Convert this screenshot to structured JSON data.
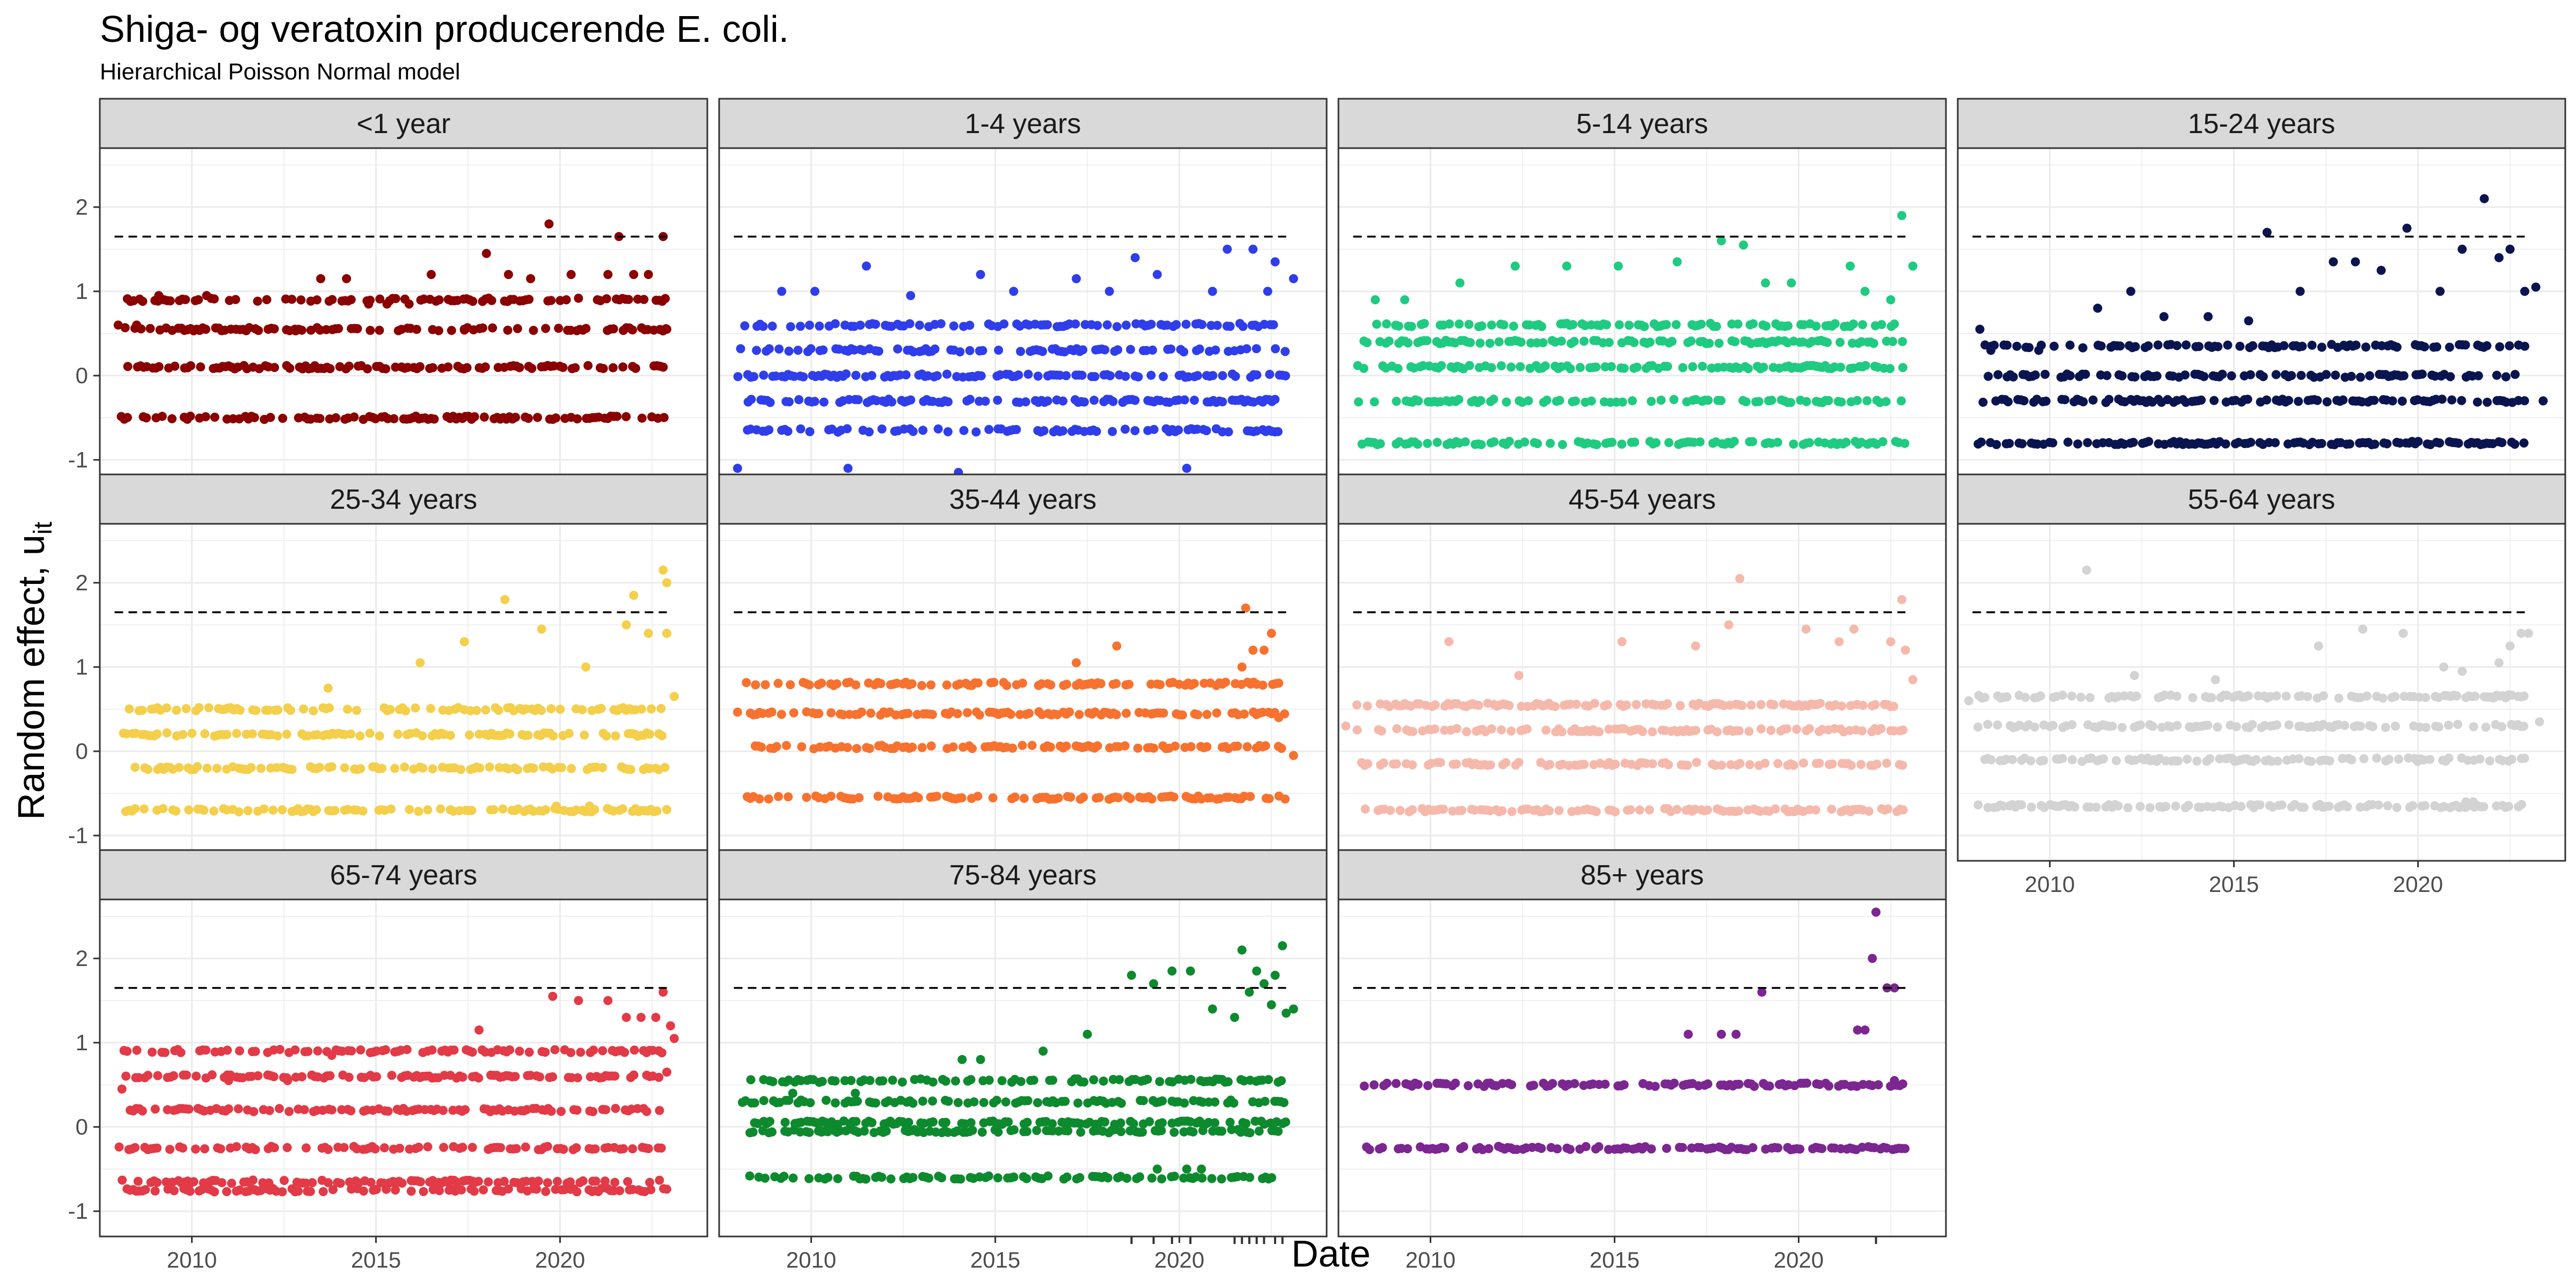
{
  "title": "Shiga- og veratoxin producerende E. coli.",
  "subtitle": "Hierarchical Poisson Normal model",
  "xlabel": "Date",
  "ylabel": "Random effect, u",
  "ylabel_sub": "it",
  "chart_data": {
    "type": "scatter",
    "title": "Shiga- og veratoxin producerende E. coli.",
    "subtitle": "Hierarchical Poisson Normal model",
    "xlabel": "Date",
    "ylabel": "Random effect, u_it",
    "xlim": [
      2007.5,
      2024.0
    ],
    "ylim": [
      -1.3,
      2.7
    ],
    "x_ticks": [
      2010,
      2015,
      2020
    ],
    "y_ticks": [
      -1,
      0,
      1,
      2
    ],
    "threshold": 1.65,
    "grid": true,
    "facets": [
      {
        "label": "<1 year",
        "color": "#8B0000",
        "levels": [
          -0.5,
          0.1,
          0.55,
          0.9
        ],
        "points": [
          [
            2008.0,
            0.6
          ],
          [
            2008.5,
            0.6
          ],
          [
            2009.1,
            0.95
          ],
          [
            2010.4,
            0.95
          ],
          [
            2011.2,
            0.55
          ],
          [
            2012.8,
            0.55
          ],
          [
            2013.5,
            1.15
          ],
          [
            2014.2,
            1.15
          ],
          [
            2014.8,
            0.85
          ],
          [
            2015.3,
            0.85
          ],
          [
            2015.9,
            0.85
          ],
          [
            2016.5,
            1.2
          ],
          [
            2017.4,
            0.55
          ],
          [
            2018.0,
            1.45
          ],
          [
            2018.6,
            1.2
          ],
          [
            2019.2,
            1.15
          ],
          [
            2019.7,
            1.8
          ],
          [
            2020.3,
            1.2
          ],
          [
            2021.3,
            1.2
          ],
          [
            2021.6,
            1.65
          ],
          [
            2022.0,
            1.2
          ],
          [
            2022.4,
            1.2
          ],
          [
            2022.8,
            1.65
          ],
          [
            2022.9,
            0.55
          ]
        ],
        "highlight_ticks": [
          2019.7,
          2021.6,
          2022.8
        ]
      },
      {
        "label": "1-4 years",
        "color": "#2F3EEA",
        "levels": [
          -0.65,
          -0.3,
          0.0,
          0.3,
          0.6
        ],
        "points": [
          [
            2008.0,
            -1.1
          ],
          [
            2009.2,
            1.0
          ],
          [
            2010.1,
            1.0
          ],
          [
            2011.0,
            -1.1
          ],
          [
            2011.5,
            1.3
          ],
          [
            2012.7,
            0.95
          ],
          [
            2014.0,
            -1.15
          ],
          [
            2014.6,
            1.2
          ],
          [
            2015.5,
            1.0
          ],
          [
            2017.2,
            1.15
          ],
          [
            2018.1,
            1.0
          ],
          [
            2018.8,
            1.4
          ],
          [
            2019.4,
            1.2
          ],
          [
            2020.2,
            -1.1
          ],
          [
            2021.3,
            1.5
          ],
          [
            2022.0,
            1.5
          ],
          [
            2022.6,
            1.35
          ],
          [
            2023.1,
            1.15
          ],
          [
            2022.4,
            1.0
          ],
          [
            2020.9,
            1.0
          ]
        ],
        "highlight_ticks": []
      },
      {
        "label": "5-14 years",
        "color": "#1FCB81",
        "levels": [
          -0.8,
          -0.3,
          0.1,
          0.4,
          0.6
        ],
        "points": [
          [
            2008.5,
            0.9
          ],
          [
            2009.3,
            0.9
          ],
          [
            2010.8,
            1.1
          ],
          [
            2012.3,
            1.3
          ],
          [
            2013.7,
            1.3
          ],
          [
            2015.1,
            1.3
          ],
          [
            2016.7,
            1.35
          ],
          [
            2017.9,
            1.6
          ],
          [
            2018.5,
            1.55
          ],
          [
            2019.1,
            1.1
          ],
          [
            2019.8,
            1.1
          ],
          [
            2021.4,
            1.3
          ],
          [
            2021.8,
            1.0
          ],
          [
            2022.8,
            1.9
          ],
          [
            2023.1,
            1.3
          ],
          [
            2022.5,
            0.9
          ]
        ],
        "highlight_ticks": [
          2022.8
        ]
      },
      {
        "label": "15-24 years",
        "color": "#0A1550",
        "levels": [
          -0.8,
          -0.3,
          0.0,
          0.35
        ],
        "points": [
          [
            2008.1,
            0.55
          ],
          [
            2008.4,
            0.3
          ],
          [
            2009.7,
            0.3
          ],
          [
            2011.3,
            0.8
          ],
          [
            2012.2,
            1.0
          ],
          [
            2013.1,
            0.7
          ],
          [
            2014.3,
            0.7
          ],
          [
            2015.4,
            0.65
          ],
          [
            2015.9,
            1.7
          ],
          [
            2016.8,
            1.0
          ],
          [
            2017.7,
            1.35
          ],
          [
            2018.3,
            1.35
          ],
          [
            2019.0,
            1.25
          ],
          [
            2019.7,
            1.75
          ],
          [
            2020.6,
            1.0
          ],
          [
            2021.2,
            1.5
          ],
          [
            2021.8,
            2.1
          ],
          [
            2022.2,
            1.4
          ],
          [
            2022.5,
            1.5
          ],
          [
            2022.9,
            1.0
          ],
          [
            2023.2,
            1.05
          ],
          [
            2023.4,
            -0.3
          ]
        ],
        "highlight_ticks": [
          2015.9,
          2021.8
        ]
      },
      {
        "label": "25-34 years",
        "color": "#F4CF4B",
        "levels": [
          -0.7,
          -0.2,
          0.2,
          0.5
        ],
        "points": [
          [
            2011.1,
            0.5
          ],
          [
            2013.7,
            0.75
          ],
          [
            2016.2,
            1.05
          ],
          [
            2017.4,
            1.3
          ],
          [
            2018.5,
            1.8
          ],
          [
            2019.5,
            1.45
          ],
          [
            2020.7,
            1.0
          ],
          [
            2021.8,
            1.5
          ],
          [
            2022.0,
            1.85
          ],
          [
            2022.4,
            1.4
          ],
          [
            2022.8,
            2.15
          ],
          [
            2022.9,
            2.0
          ],
          [
            2023.1,
            0.65
          ],
          [
            2022.9,
            1.4
          ],
          [
            2019.9,
            -0.65
          ],
          [
            2020.8,
            -0.65
          ]
        ],
        "highlight_ticks": [
          2018.5,
          2021.8,
          2022.8,
          2022.9
        ]
      },
      {
        "label": "35-44 years",
        "color": "#F7722F",
        "levels": [
          -0.55,
          0.05,
          0.45,
          0.8
        ],
        "points": [
          [
            2018.3,
            1.25
          ],
          [
            2021.7,
            1.0
          ],
          [
            2021.8,
            1.7
          ],
          [
            2022.0,
            1.2
          ],
          [
            2022.3,
            1.2
          ],
          [
            2022.5,
            1.4
          ],
          [
            2022.7,
            0.4
          ],
          [
            2023.1,
            -0.05
          ],
          [
            2017.2,
            1.05
          ]
        ],
        "highlight_ticks": [
          2021.8
        ]
      },
      {
        "label": "45-54 years",
        "color": "#F5B9AC",
        "levels": [
          -0.7,
          -0.15,
          0.25,
          0.55
        ],
        "points": [
          [
            2007.7,
            0.3
          ],
          [
            2008.0,
            0.55
          ],
          [
            2010.5,
            1.3
          ],
          [
            2012.4,
            0.9
          ],
          [
            2015.2,
            1.3
          ],
          [
            2017.2,
            1.25
          ],
          [
            2018.4,
            2.05
          ],
          [
            2018.1,
            1.5
          ],
          [
            2020.2,
            1.45
          ],
          [
            2021.1,
            1.3
          ],
          [
            2021.5,
            1.45
          ],
          [
            2022.5,
            1.3
          ],
          [
            2022.8,
            1.8
          ],
          [
            2022.9,
            1.2
          ],
          [
            2023.1,
            0.85
          ]
        ],
        "highlight_ticks": [
          2018.4,
          2022.8
        ]
      },
      {
        "label": "55-64 years",
        "color": "#D3D3D3",
        "levels": [
          -0.65,
          -0.1,
          0.3,
          0.65
        ],
        "points": [
          [
            2007.8,
            0.6
          ],
          [
            2011.0,
            2.15
          ],
          [
            2012.3,
            0.9
          ],
          [
            2014.5,
            0.85
          ],
          [
            2017.3,
            1.25
          ],
          [
            2018.5,
            1.45
          ],
          [
            2019.6,
            1.4
          ],
          [
            2020.7,
            1.0
          ],
          [
            2021.2,
            0.95
          ],
          [
            2022.2,
            1.05
          ],
          [
            2022.5,
            1.25
          ],
          [
            2022.8,
            1.4
          ],
          [
            2023.0,
            1.4
          ],
          [
            2023.3,
            0.35
          ],
          [
            2021.3,
            -0.6
          ],
          [
            2021.5,
            -0.6
          ]
        ],
        "highlight_ticks": []
      },
      {
        "label": "65-74 years",
        "color": "#E23A47",
        "levels": [
          -0.75,
          -0.65,
          -0.25,
          0.2,
          0.6,
          0.9
        ],
        "points": [
          [
            2008.1,
            0.45
          ],
          [
            2011.0,
            0.55
          ],
          [
            2012.6,
            0.55
          ],
          [
            2013.8,
            0.85
          ],
          [
            2016.4,
            0.9
          ],
          [
            2017.8,
            1.15
          ],
          [
            2019.8,
            1.55
          ],
          [
            2020.5,
            1.5
          ],
          [
            2021.3,
            1.5
          ],
          [
            2021.8,
            1.3
          ],
          [
            2022.2,
            1.3
          ],
          [
            2022.6,
            1.3
          ],
          [
            2022.8,
            1.6
          ],
          [
            2023.0,
            1.2
          ],
          [
            2023.1,
            1.05
          ],
          [
            2022.9,
            0.65
          ]
        ],
        "highlight_ticks": []
      },
      {
        "label": "75-84 years",
        "color": "#0E8A2E",
        "levels": [
          -0.6,
          -0.05,
          0.05,
          0.3,
          0.55
        ],
        "points": [
          [
            2009.5,
            0.4
          ],
          [
            2011.2,
            0.4
          ],
          [
            2014.1,
            0.8
          ],
          [
            2014.6,
            0.8
          ],
          [
            2016.3,
            0.9
          ],
          [
            2017.5,
            1.1
          ],
          [
            2018.7,
            1.8
          ],
          [
            2019.3,
            1.7
          ],
          [
            2019.8,
            1.85
          ],
          [
            2020.3,
            1.85
          ],
          [
            2020.9,
            1.4
          ],
          [
            2021.5,
            1.3
          ],
          [
            2021.7,
            2.1
          ],
          [
            2021.9,
            1.6
          ],
          [
            2022.1,
            1.85
          ],
          [
            2022.3,
            1.7
          ],
          [
            2022.6,
            1.8
          ],
          [
            2022.8,
            2.15
          ],
          [
            2022.9,
            1.35
          ],
          [
            2023.1,
            1.4
          ],
          [
            2022.5,
            1.45
          ],
          [
            2020.2,
            -0.5
          ],
          [
            2020.6,
            -0.5
          ],
          [
            2019.4,
            -0.5
          ]
        ],
        "highlight_ticks": [
          2018.7,
          2019.3,
          2019.8,
          2020.3,
          2021.5,
          2021.7,
          2021.9,
          2022.1,
          2022.3,
          2022.6,
          2022.8
        ]
      },
      {
        "label": "85+ years",
        "color": "#7B2691",
        "levels": [
          -0.25,
          0.5
        ],
        "points": [
          [
            2017.0,
            1.1
          ],
          [
            2017.9,
            1.1
          ],
          [
            2018.3,
            1.1
          ],
          [
            2019.0,
            1.6
          ],
          [
            2021.6,
            1.15
          ],
          [
            2021.8,
            1.15
          ],
          [
            2022.0,
            2.0
          ],
          [
            2022.1,
            2.55
          ],
          [
            2022.4,
            1.65
          ],
          [
            2022.6,
            1.65
          ],
          [
            2022.6,
            0.55
          ]
        ],
        "highlight_ticks": [
          2022.1
        ]
      }
    ]
  }
}
